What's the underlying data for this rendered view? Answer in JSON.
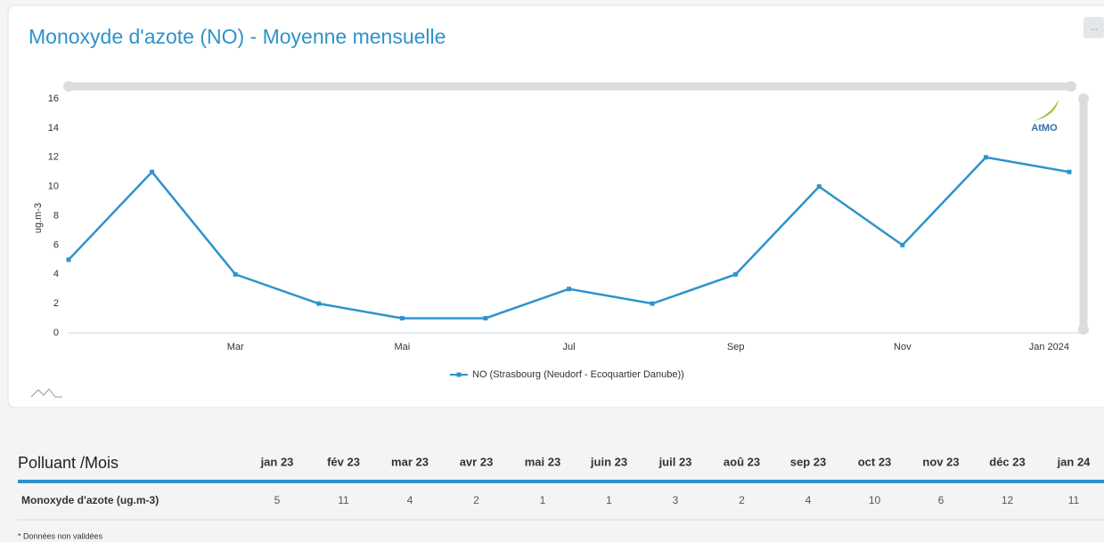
{
  "chart_data": {
    "type": "line",
    "title": "Monoxyde d'azote (NO) - Moyenne mensuelle",
    "y_label": "ug.m-3",
    "categories": [
      null,
      null,
      "Mar",
      null,
      "Mai",
      null,
      "Jul",
      null,
      "Sep",
      null,
      "Nov",
      null,
      "Jan 2024"
    ],
    "series": [
      {
        "name": "NO (Strasbourg (Neudorf - Ecoquartier Danube))",
        "color": "#2e93cc",
        "values": [
          5,
          11,
          4,
          2,
          1,
          1,
          3,
          2,
          4,
          10,
          6,
          12,
          11
        ]
      }
    ],
    "ylim": [
      0,
      16
    ],
    "yticks": [
      0,
      2,
      4,
      6,
      8,
      10,
      12,
      14,
      16
    ],
    "grid": false,
    "legend": "bottom"
  },
  "logo": "AtMO",
  "menu_label": "...",
  "table": {
    "header": [
      "Polluant /Mois",
      "jan 23",
      "fév 23",
      "mar 23",
      "avr 23",
      "mai 23",
      "juin 23",
      "juil 23",
      "aoû 23",
      "sep 23",
      "oct 23",
      "nov 23",
      "déc 23",
      "jan 24"
    ],
    "rows": [
      [
        "Monoxyde d'azote (ug.m-3)",
        5,
        11,
        4,
        2,
        1,
        1,
        3,
        2,
        4,
        10,
        6,
        12,
        11
      ]
    ]
  },
  "footnote": "* Données non validées"
}
